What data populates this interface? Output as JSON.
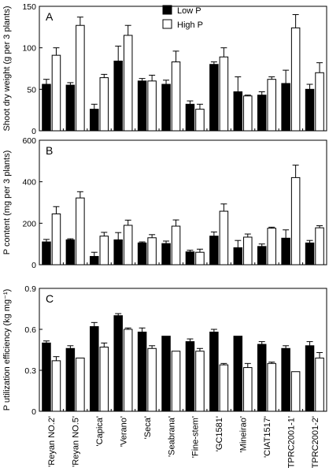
{
  "chart_data": [
    {
      "type": "bar",
      "panel_label": "A",
      "ylabel": "Shoot dry weight (g per 3 plants)",
      "xlabel": "",
      "ylim": [
        0,
        150
      ],
      "yticks": [
        0,
        50,
        100,
        150
      ],
      "legend": {
        "placement": "top-center",
        "entries": [
          "Low P",
          "High P"
        ]
      },
      "categories": [
        "'Reyan NO.2'",
        "'Reyan NO.5'",
        "'Capica'",
        "'Verano'",
        "'Seca'",
        "'Seabrana'",
        "'Fine-stem'",
        "'GC1581'",
        "'Mineirao'",
        "'CIAT1517'",
        "'TPRC2001-1'",
        "'TPRC2001-2'"
      ],
      "series": [
        {
          "name": "Low P",
          "color": "#000000",
          "values": [
            56,
            55,
            26,
            84,
            60,
            56,
            32,
            80,
            47,
            43,
            57,
            50
          ],
          "errors": [
            6,
            3,
            6,
            18,
            3,
            5,
            4,
            3,
            18,
            4,
            16,
            6
          ]
        },
        {
          "name": "High P",
          "color": "#ffffff",
          "values": [
            91,
            127,
            64,
            115,
            60,
            83,
            26,
            89,
            42,
            62,
            124,
            70
          ],
          "errors": [
            9,
            10,
            4,
            12,
            7,
            13,
            6,
            11,
            1,
            3,
            16,
            12
          ]
        }
      ]
    },
    {
      "type": "bar",
      "panel_label": "B",
      "ylabel": "P content (mg per 3 plants)",
      "xlabel": "",
      "ylim": [
        0,
        600
      ],
      "yticks": [
        0,
        200,
        400,
        600
      ],
      "categories": [
        "'Reyan NO.2'",
        "'Reyan NO.5'",
        "'Capica'",
        "'Verano'",
        "'Seca'",
        "'Seabrana'",
        "'Fine-stem'",
        "'GC1581'",
        "'Mineirao'",
        "'CIAT1517'",
        "'TPRC2001-1'",
        "'TPRC2001-2'"
      ],
      "series": [
        {
          "name": "Low P",
          "color": "#000000",
          "values": [
            110,
            120,
            40,
            120,
            105,
            102,
            62,
            138,
            82,
            88,
            128,
            105
          ],
          "errors": [
            12,
            5,
            20,
            35,
            5,
            12,
            8,
            20,
            35,
            12,
            40,
            12
          ]
        },
        {
          "name": "High P",
          "color": "#ffffff",
          "values": [
            245,
            322,
            138,
            190,
            130,
            186,
            60,
            258,
            133,
            176,
            420,
            178
          ],
          "errors": [
            35,
            30,
            18,
            25,
            15,
            30,
            15,
            35,
            15,
            5,
            60,
            10
          ]
        }
      ]
    },
    {
      "type": "bar",
      "panel_label": "C",
      "ylabel": "P utilization efficiency (kg mg⁻¹)",
      "xlabel": "",
      "ylim": [
        0,
        0.9
      ],
      "yticks": [
        0,
        0.3,
        0.6,
        0.9
      ],
      "ytick_labels": [
        "0",
        "0.3",
        "0.6",
        "0.9"
      ],
      "categories": [
        "'Reyan NO.2'",
        "'Reyan NO.5'",
        "'Capica'",
        "'Verano'",
        "'Seca'",
        "'Seabrana'",
        "'Fine-stem'",
        "'GC1581'",
        "'Mineirao'",
        "'CIAT1517'",
        "'TPRC2001-1'",
        "'TPRC2001-2'"
      ],
      "series": [
        {
          "name": "Low P",
          "color": "#000000",
          "values": [
            0.5,
            0.46,
            0.62,
            0.7,
            0.58,
            0.55,
            0.51,
            0.58,
            0.55,
            0.49,
            0.46,
            0.48
          ],
          "errors": [
            0.015,
            0.02,
            0.03,
            0.015,
            0.03,
            0,
            0.02,
            0.02,
            0,
            0.02,
            0.02,
            0.03
          ]
        },
        {
          "name": "High P",
          "color": "#ffffff",
          "values": [
            0.37,
            0.39,
            0.47,
            0.6,
            0.46,
            0.44,
            0.44,
            0.34,
            0.32,
            0.35,
            0.29,
            0.39
          ],
          "errors": [
            0.03,
            0,
            0.03,
            0.01,
            0.02,
            0,
            0.02,
            0.01,
            0.03,
            0.01,
            0,
            0.04
          ]
        }
      ]
    }
  ]
}
